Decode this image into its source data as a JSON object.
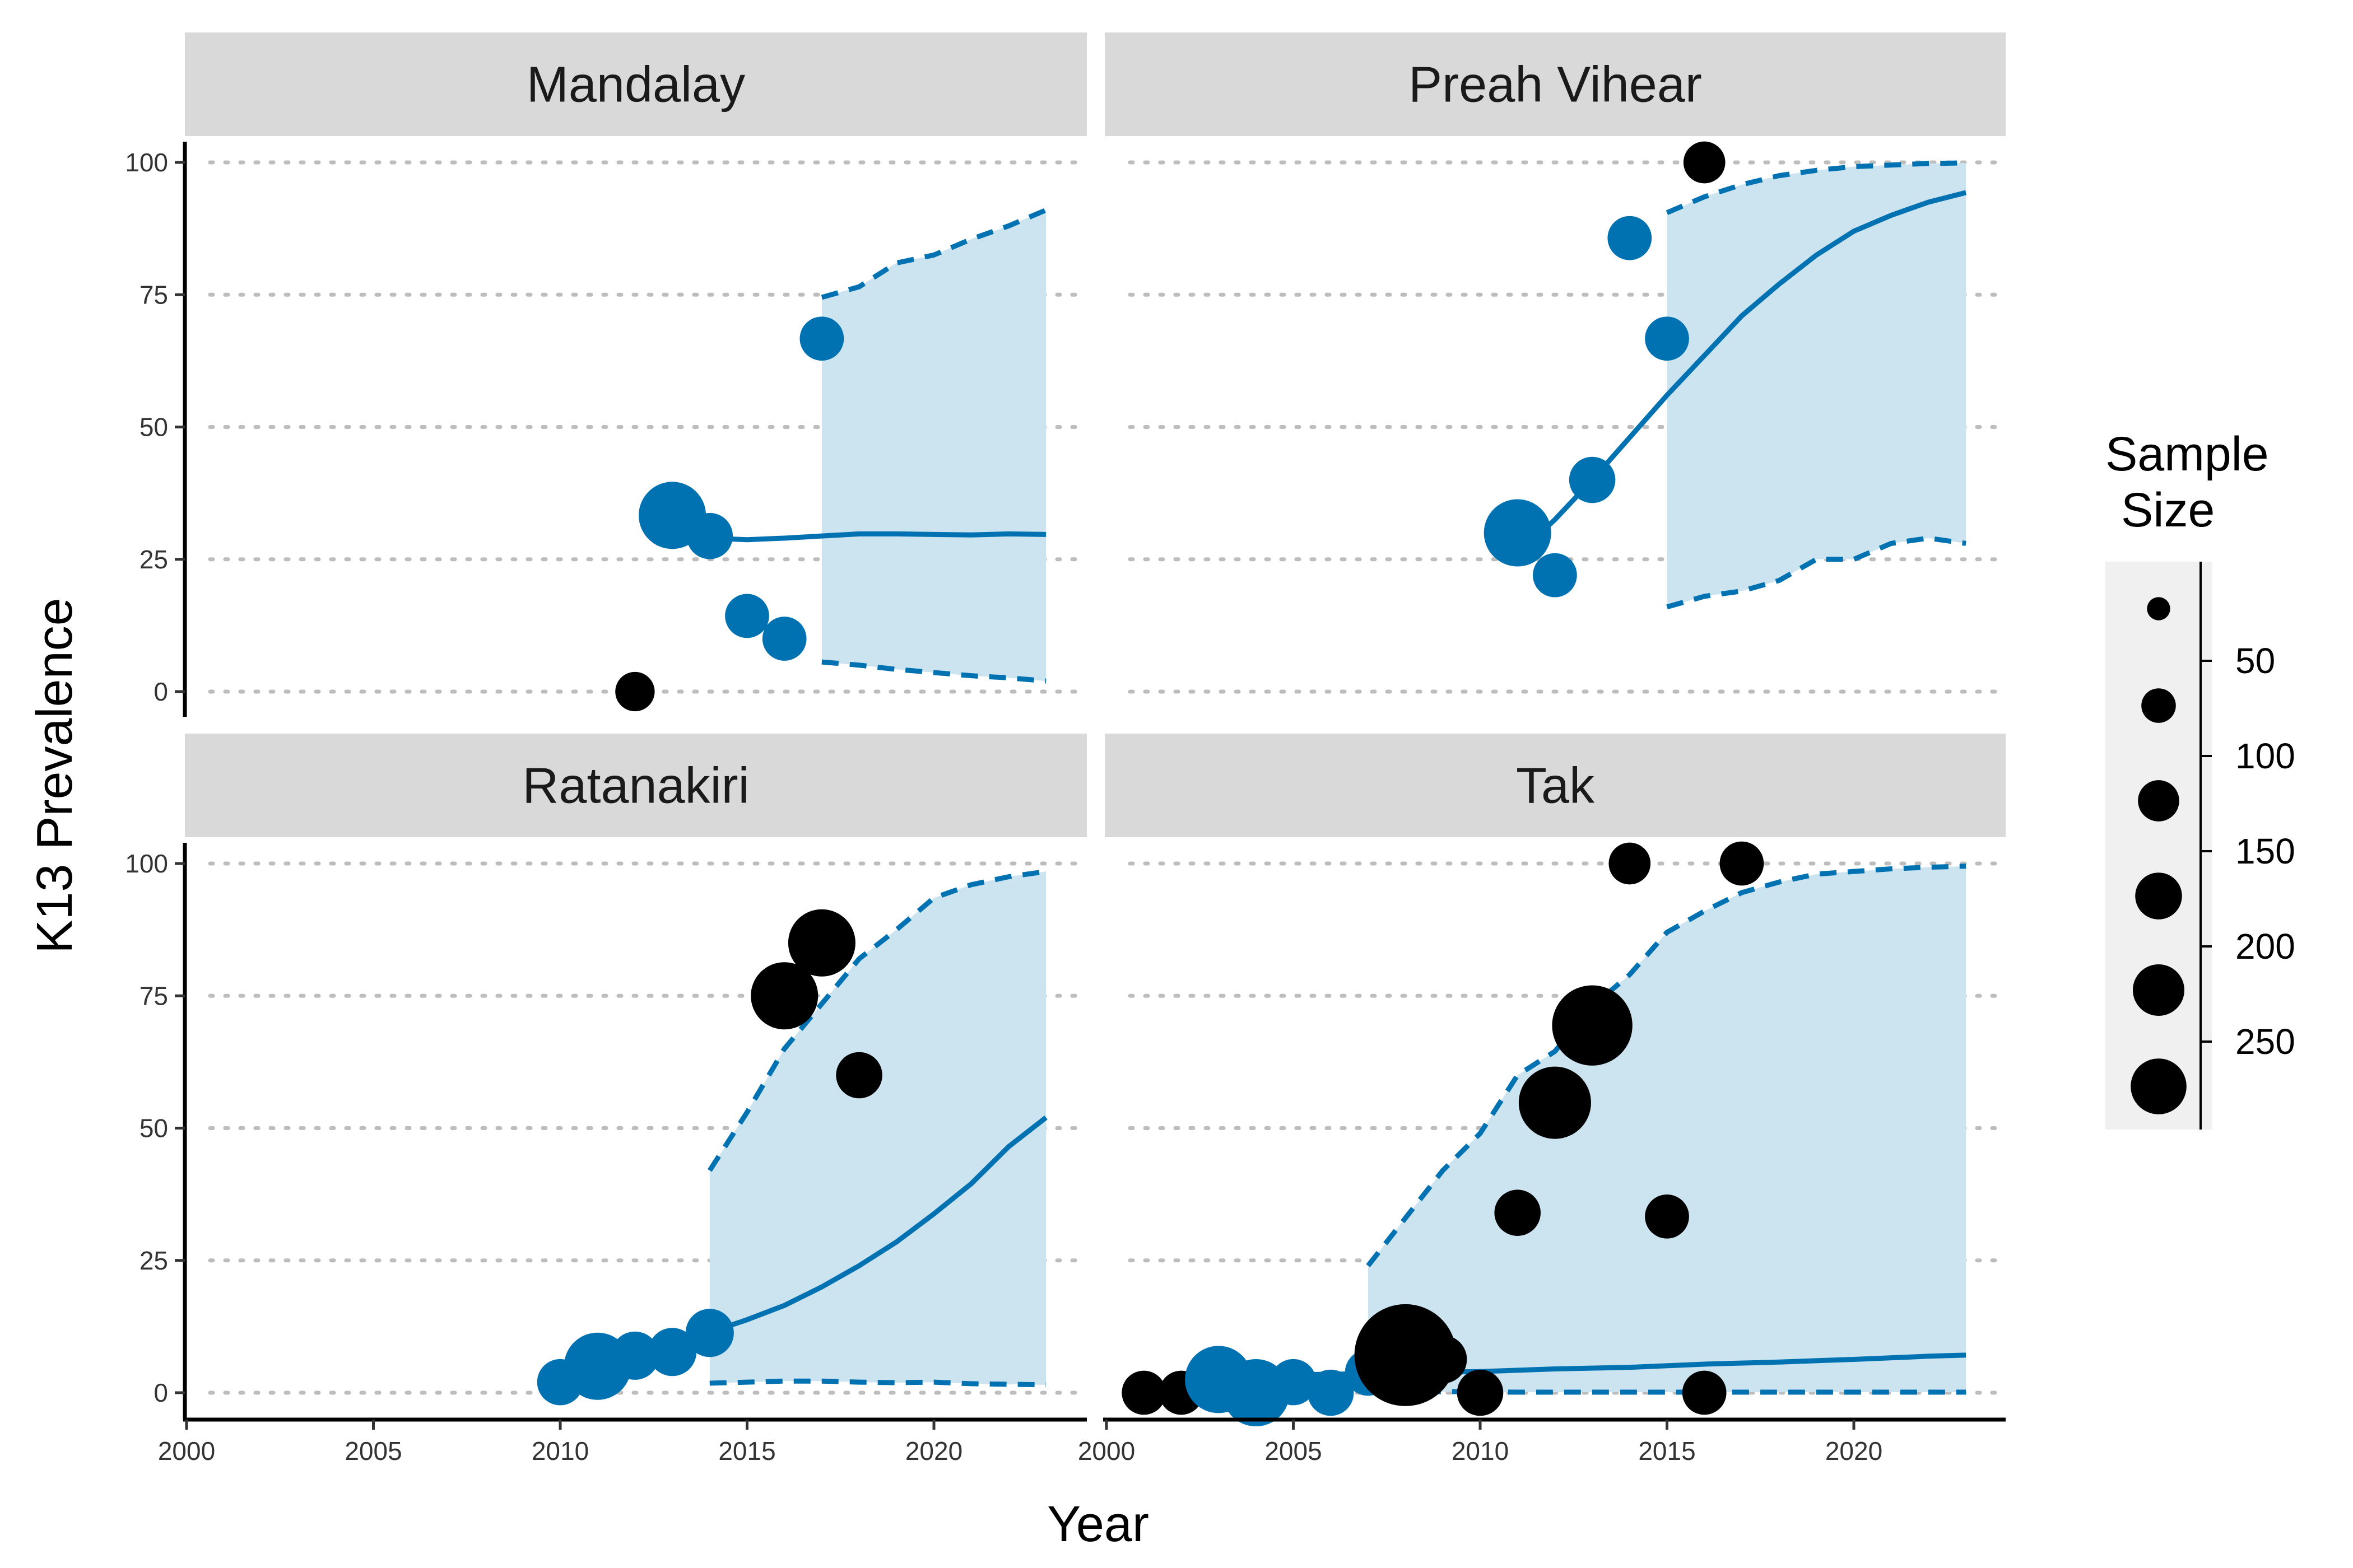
{
  "chart_data": {
    "type": "scatter",
    "xlabel": "Year",
    "ylabel": "K13 Prevalence",
    "xlim": [
      2000,
      2025
    ],
    "ylim": [
      0,
      100
    ],
    "x_ticks": [
      "2000",
      "2005",
      "2010",
      "2015",
      "2020"
    ],
    "y_ticks": [
      "0",
      "25",
      "50",
      "75",
      "100"
    ],
    "grid": "dotted horizontal",
    "colors": {
      "observed": "#0072b2",
      "other": "#000000",
      "band": "#cce3f0",
      "strip": "#d9d9d9"
    },
    "legend": {
      "title_lines": [
        "Sample",
        "Size"
      ],
      "placement": "right",
      "entries": [
        {
          "label": "",
          "size": 20
        },
        {
          "label": "50",
          "size": 75
        },
        {
          "label": "100",
          "size": 125
        },
        {
          "label": "150",
          "size": 175
        },
        {
          "label": "200",
          "size": 225
        },
        {
          "label": "250",
          "size": 275
        }
      ],
      "scale_ticks": [
        50,
        100,
        150,
        200,
        250
      ]
    },
    "panels": [
      {
        "name": "Mandalay",
        "points": [
          {
            "x": 2012,
            "y": 0,
            "n": 30,
            "color": "other"
          },
          {
            "x": 2013,
            "y": 33.3,
            "n": 110,
            "color": "observed"
          },
          {
            "x": 2014,
            "y": 29.4,
            "n": 45,
            "color": "observed"
          },
          {
            "x": 2015,
            "y": 14.3,
            "n": 40,
            "color": "observed"
          },
          {
            "x": 2016,
            "y": 10,
            "n": 40,
            "color": "observed"
          },
          {
            "x": 2017,
            "y": 66.7,
            "n": 40,
            "color": "observed"
          }
        ],
        "fit": [
          [
            2013,
            28.6
          ],
          [
            2014,
            29.0
          ],
          [
            2015,
            28.7
          ],
          [
            2016,
            29.0
          ],
          [
            2017,
            29.4
          ],
          [
            2018,
            29.8
          ],
          [
            2019,
            29.8
          ],
          [
            2020,
            29.7
          ],
          [
            2021,
            29.6
          ],
          [
            2022,
            29.8
          ],
          [
            2023,
            29.7
          ]
        ],
        "band": [
          {
            "x": 2017,
            "lo": 5.6,
            "hi": 74.5
          },
          {
            "x": 2018,
            "lo": 5.0,
            "hi": 76.5
          },
          {
            "x": 2019,
            "lo": 4.2,
            "hi": 81.0
          },
          {
            "x": 2020,
            "lo": 3.6,
            "hi": 82.5
          },
          {
            "x": 2021,
            "lo": 3.0,
            "hi": 85.5
          },
          {
            "x": 2022,
            "lo": 2.6,
            "hi": 88.0
          },
          {
            "x": 2023,
            "lo": 2.0,
            "hi": 91.0
          }
        ]
      },
      {
        "name": "Preah Vihear",
        "points": [
          {
            "x": 2011,
            "y": 30,
            "n": 110,
            "color": "observed"
          },
          {
            "x": 2012,
            "y": 22,
            "n": 40,
            "color": "observed"
          },
          {
            "x": 2013,
            "y": 40,
            "n": 45,
            "color": "observed"
          },
          {
            "x": 2014,
            "y": 85.7,
            "n": 40,
            "color": "observed"
          },
          {
            "x": 2015,
            "y": 66.7,
            "n": 40,
            "color": "observed"
          },
          {
            "x": 2016,
            "y": 100,
            "n": 35,
            "color": "other"
          }
        ],
        "fit": [
          [
            2011,
            26
          ],
          [
            2012,
            32.5
          ],
          [
            2013,
            40
          ],
          [
            2014,
            48
          ],
          [
            2015,
            56
          ],
          [
            2016,
            63.5
          ],
          [
            2017,
            71
          ],
          [
            2018,
            77
          ],
          [
            2019,
            82.5
          ],
          [
            2020,
            87
          ],
          [
            2021,
            90
          ],
          [
            2022,
            92.5
          ],
          [
            2023,
            94.3
          ]
        ],
        "band": [
          {
            "x": 2015,
            "lo": 16,
            "hi": 90.5
          },
          {
            "x": 2016,
            "lo": 18,
            "hi": 93.5
          },
          {
            "x": 2017,
            "lo": 19,
            "hi": 95.8
          },
          {
            "x": 2018,
            "lo": 21,
            "hi": 97.5
          },
          {
            "x": 2019,
            "lo": 25,
            "hi": 98.5
          },
          {
            "x": 2020,
            "lo": 25,
            "hi": 99.2
          },
          {
            "x": 2021,
            "lo": 28,
            "hi": 99.5
          },
          {
            "x": 2022,
            "lo": 29,
            "hi": 99.8
          },
          {
            "x": 2023,
            "lo": 28,
            "hi": 99.9
          }
        ]
      },
      {
        "name": "Ratanakiri",
        "points": [
          {
            "x": 2010,
            "y": 2,
            "n": 45,
            "color": "observed"
          },
          {
            "x": 2011,
            "y": 5,
            "n": 110,
            "color": "observed"
          },
          {
            "x": 2012,
            "y": 7,
            "n": 50,
            "color": "observed"
          },
          {
            "x": 2013,
            "y": 7.7,
            "n": 50,
            "color": "observed"
          },
          {
            "x": 2014,
            "y": 11.3,
            "n": 50,
            "color": "observed"
          },
          {
            "x": 2016,
            "y": 75,
            "n": 110,
            "color": "other"
          },
          {
            "x": 2017,
            "y": 85,
            "n": 110,
            "color": "other"
          },
          {
            "x": 2018,
            "y": 60,
            "n": 45,
            "color": "other"
          }
        ],
        "fit": [
          [
            2010,
            4.5
          ],
          [
            2011,
            6.2
          ],
          [
            2012,
            7.7
          ],
          [
            2013,
            9.4
          ],
          [
            2014,
            11.4
          ],
          [
            2015,
            13.8
          ],
          [
            2016,
            16.5
          ],
          [
            2017,
            20
          ],
          [
            2018,
            24
          ],
          [
            2019,
            28.5
          ],
          [
            2020,
            33.8
          ],
          [
            2021,
            39.5
          ],
          [
            2022,
            46.5
          ],
          [
            2023,
            52
          ]
        ],
        "band": [
          {
            "x": 2014,
            "lo": 1.8,
            "hi": 42
          },
          {
            "x": 2015,
            "lo": 2.0,
            "hi": 53
          },
          {
            "x": 2016,
            "lo": 2.2,
            "hi": 65
          },
          {
            "x": 2017,
            "lo": 2.2,
            "hi": 73.5
          },
          {
            "x": 2018,
            "lo": 2.0,
            "hi": 82
          },
          {
            "x": 2019,
            "lo": 1.9,
            "hi": 87.5
          },
          {
            "x": 2020,
            "lo": 2.0,
            "hi": 93.5
          },
          {
            "x": 2021,
            "lo": 1.7,
            "hi": 96
          },
          {
            "x": 2022,
            "lo": 1.6,
            "hi": 97.5
          },
          {
            "x": 2023,
            "lo": 1.5,
            "hi": 98.5
          }
        ]
      },
      {
        "name": "Tak",
        "points": [
          {
            "x": 2001,
            "y": 0,
            "n": 40,
            "color": "other"
          },
          {
            "x": 2002,
            "y": 0,
            "n": 40,
            "color": "other"
          },
          {
            "x": 2003,
            "y": 2.5,
            "n": 110,
            "color": "observed"
          },
          {
            "x": 2004,
            "y": 0,
            "n": 110,
            "color": "observed"
          },
          {
            "x": 2005,
            "y": 2,
            "n": 45,
            "color": "observed"
          },
          {
            "x": 2006,
            "y": 0,
            "n": 45,
            "color": "observed"
          },
          {
            "x": 2007,
            "y": 3.8,
            "n": 45,
            "color": "observed"
          },
          {
            "x": 2008,
            "y": 7.1,
            "n": 280,
            "color": "other"
          },
          {
            "x": 2009,
            "y": 6.3,
            "n": 50,
            "color": "other"
          },
          {
            "x": 2010,
            "y": 0,
            "n": 45,
            "color": "other"
          },
          {
            "x": 2011,
            "y": 34,
            "n": 45,
            "color": "other"
          },
          {
            "x": 2012,
            "y": 54.8,
            "n": 130,
            "color": "other"
          },
          {
            "x": 2013,
            "y": 69.4,
            "n": 165,
            "color": "other"
          },
          {
            "x": 2014,
            "y": 100,
            "n": 35,
            "color": "other"
          },
          {
            "x": 2015,
            "y": 33.3,
            "n": 40,
            "color": "other"
          },
          {
            "x": 2016,
            "y": 0,
            "n": 40,
            "color": "other"
          },
          {
            "x": 2017,
            "y": 100,
            "n": 40,
            "color": "other"
          }
        ],
        "fit": [
          [
            2003,
            3.2
          ],
          [
            2007,
            3.6
          ],
          [
            2008,
            3.8
          ],
          [
            2010,
            4.0
          ],
          [
            2012,
            4.5
          ],
          [
            2014,
            4.8
          ],
          [
            2016,
            5.4
          ],
          [
            2018,
            5.8
          ],
          [
            2020,
            6.3
          ],
          [
            2022,
            6.9
          ],
          [
            2023,
            7.1
          ]
        ],
        "band": [
          {
            "x": 2007,
            "lo": 0.3,
            "hi": 24
          },
          {
            "x": 2008,
            "lo": 0.2,
            "hi": 33
          },
          {
            "x": 2009,
            "lo": 0.2,
            "hi": 42
          },
          {
            "x": 2010,
            "lo": 0.2,
            "hi": 49
          },
          {
            "x": 2011,
            "lo": 0.1,
            "hi": 60
          },
          {
            "x": 2012,
            "lo": 0.1,
            "hi": 64.5
          },
          {
            "x": 2013,
            "lo": 0.1,
            "hi": 73
          },
          {
            "x": 2014,
            "lo": 0.1,
            "hi": 79
          },
          {
            "x": 2015,
            "lo": 0.1,
            "hi": 87
          },
          {
            "x": 2016,
            "lo": 0.1,
            "hi": 91
          },
          {
            "x": 2017,
            "lo": 0.1,
            "hi": 94.5
          },
          {
            "x": 2018,
            "lo": 0.1,
            "hi": 96.5
          },
          {
            "x": 2019,
            "lo": 0.1,
            "hi": 98
          },
          {
            "x": 2020,
            "lo": 0.1,
            "hi": 98.5
          },
          {
            "x": 2021,
            "lo": 0.1,
            "hi": 99
          },
          {
            "x": 2022,
            "lo": 0.1,
            "hi": 99.3
          },
          {
            "x": 2023,
            "lo": 0.1,
            "hi": 99.5
          }
        ]
      }
    ]
  }
}
